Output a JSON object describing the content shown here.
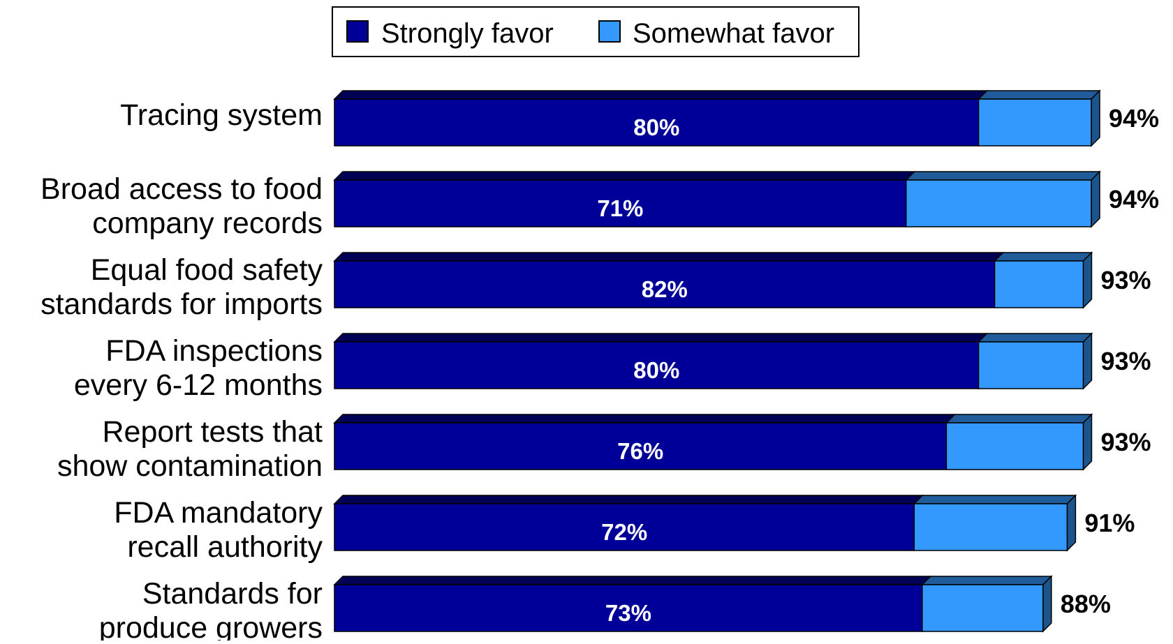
{
  "chart_data": {
    "type": "bar",
    "orientation": "horizontal",
    "stacked": true,
    "categories": [
      [
        "Tracing system"
      ],
      [
        "Broad access to food",
        "company records"
      ],
      [
        "Equal food safety",
        "standards for imports"
      ],
      [
        "FDA inspections",
        "every 6-12 months"
      ],
      [
        "Report tests that",
        "show contamination"
      ],
      [
        "FDA mandatory",
        "recall authority"
      ],
      [
        "Standards for",
        "produce growers"
      ]
    ],
    "series": [
      {
        "name": "Strongly favor",
        "color": "#000099",
        "values": [
          80,
          71,
          82,
          80,
          76,
          72,
          73
        ]
      },
      {
        "name": "Somewhat favor",
        "color": "#3399ff",
        "values": [
          14,
          23,
          11,
          13,
          17,
          19,
          15
        ]
      }
    ],
    "inner_labels": [
      "80%",
      "71%",
      "82%",
      "80%",
      "76%",
      "72%",
      "73%"
    ],
    "totals": [
      "94%",
      "94%",
      "93%",
      "93%",
      "93%",
      "91%",
      "88%"
    ],
    "xlim": [
      0,
      94
    ],
    "legend_position": "top-center",
    "grid": false,
    "three_d": true
  }
}
